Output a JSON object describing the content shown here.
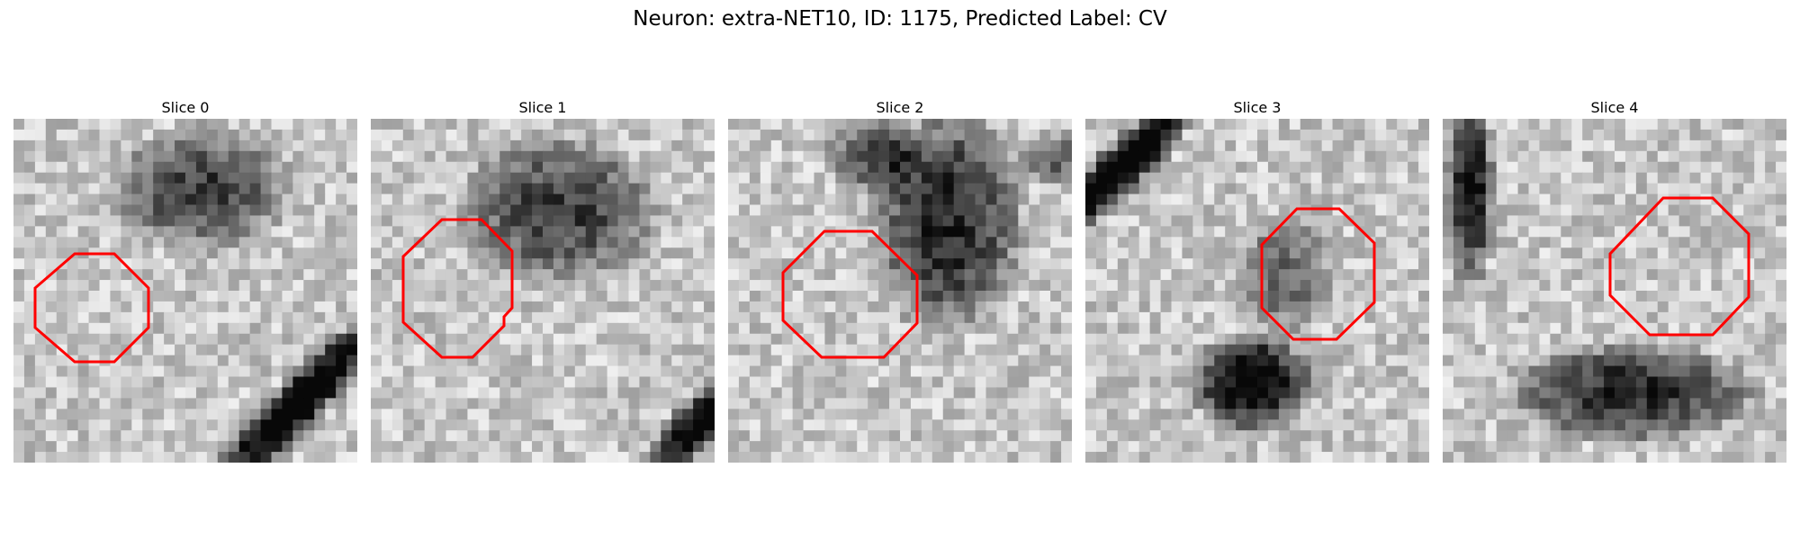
{
  "title": "Neuron: extra-NET10, ID: 1175, Predicted Label: CV",
  "overlay_color": "#ff0000",
  "panels": [
    {
      "label": "Slice 0"
    },
    {
      "label": "Slice 1"
    },
    {
      "label": "Slice 2"
    },
    {
      "label": "Slice 3"
    },
    {
      "label": "Slice 4"
    }
  ]
}
